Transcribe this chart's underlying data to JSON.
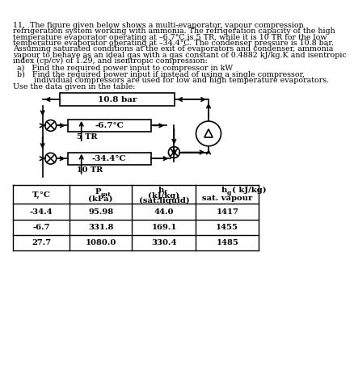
{
  "bg_color": "#ffffff",
  "text_color": "#000000",
  "para_lines": [
    "11.  The figure given below shows a multi-evaporator, vapour compression",
    "refrigeration system working with ammonia. The refrigeration capacity of the high",
    "temperature evaporator operating at –6.7°C is 5 TR, while it is 10 TR for the low",
    "temperature evaporator operating at –34.4°C. The condenser pressure is 10.8 bar.",
    "Assuming saturated conditions at the exit of evaporators and condenser, ammonia",
    "vapour to behave as an ideal gas with a gas constant of 0.4882 kJ/kg.K and isentropic",
    "index (cp/cv) of 1.29, and isentropic compression:"
  ],
  "item_a": "a)   Find the required power input to compressor in kW",
  "item_b1": "b)   Find the required power input if instead of using a single compressor,",
  "item_b2": "       individual compressors are used for low and high temperature evaporators.",
  "table_note": "Use the data given in the table:",
  "condenser_label": "10.8 bar",
  "evap1_label": "-6.7°C",
  "evap1_capacity": "5 TR",
  "evap2_label": "-34.4°C",
  "evap2_capacity": "10 TR",
  "table_rows": [
    [
      "-34.4",
      "95.98",
      "44.0",
      "1417"
    ],
    [
      "-6.7",
      "331.8",
      "169.1",
      "1455"
    ],
    [
      "27.7",
      "1080.0",
      "330.4",
      "1485"
    ]
  ]
}
